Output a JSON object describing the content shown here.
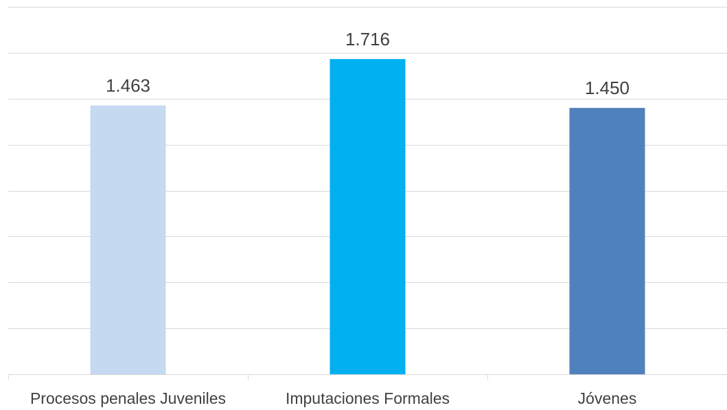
{
  "chart_data": {
    "type": "bar",
    "categories": [
      "Procesos penales Juveniles",
      "Imputaciones Formales",
      "Jóvenes"
    ],
    "values": [
      1463,
      1716,
      1450
    ],
    "value_labels": [
      "1.463",
      "1.716",
      "1.450"
    ],
    "bar_colors": [
      "#c5d9f0",
      "#00b0f0",
      "#4f81bd"
    ],
    "title": "",
    "xlabel": "",
    "ylabel": "",
    "ylim": [
      0,
      2000
    ],
    "grid": true,
    "grid_color": "#d9d9d9",
    "legend": "none"
  }
}
